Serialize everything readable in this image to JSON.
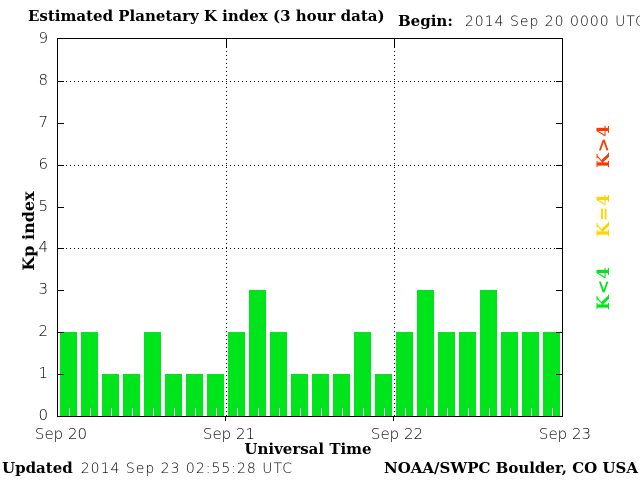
{
  "title": "Estimated Planetary K index (3 hour data)",
  "begin": {
    "label": "Begin:",
    "value": "2014 Sep 20 0000 UTC"
  },
  "footer": {
    "updated_label": "Updated",
    "updated_value": "2014 Sep 23 02:55:28 UTC",
    "source": "NOAA/SWPC Boulder, CO USA"
  },
  "chart_data": {
    "type": "bar",
    "title": "Estimated Planetary K index (3 hour data)",
    "xlabel": "Universal Time",
    "ylabel": "Kp index",
    "ylim": [
      0,
      9
    ],
    "yticks": [
      0,
      1,
      2,
      3,
      4,
      5,
      6,
      7,
      8,
      9
    ],
    "gridlines_y": [
      4,
      6,
      8
    ],
    "interval_hours": 3,
    "bar_color": "#00e41c",
    "categories": [
      "Sep 20",
      "Sep 21",
      "Sep 22"
    ],
    "x_axis_day_labels": [
      "Sep 20",
      "Sep 21",
      "Sep 22",
      "Sep 23"
    ],
    "series": [
      {
        "name": "Sep 20",
        "values": [
          2,
          2,
          1,
          1,
          2,
          1,
          1,
          1
        ]
      },
      {
        "name": "Sep 21",
        "values": [
          2,
          3,
          2,
          1,
          1,
          1,
          2,
          1
        ]
      },
      {
        "name": "Sep 22",
        "values": [
          2,
          3,
          2,
          2,
          3,
          2,
          2,
          2
        ]
      }
    ],
    "legend": [
      {
        "label": "K>4",
        "color": "#f83b00"
      },
      {
        "label": "K=4",
        "color": "#ffd400"
      },
      {
        "label": "K<4",
        "color": "#00e41c"
      }
    ],
    "legend_position": "right"
  }
}
